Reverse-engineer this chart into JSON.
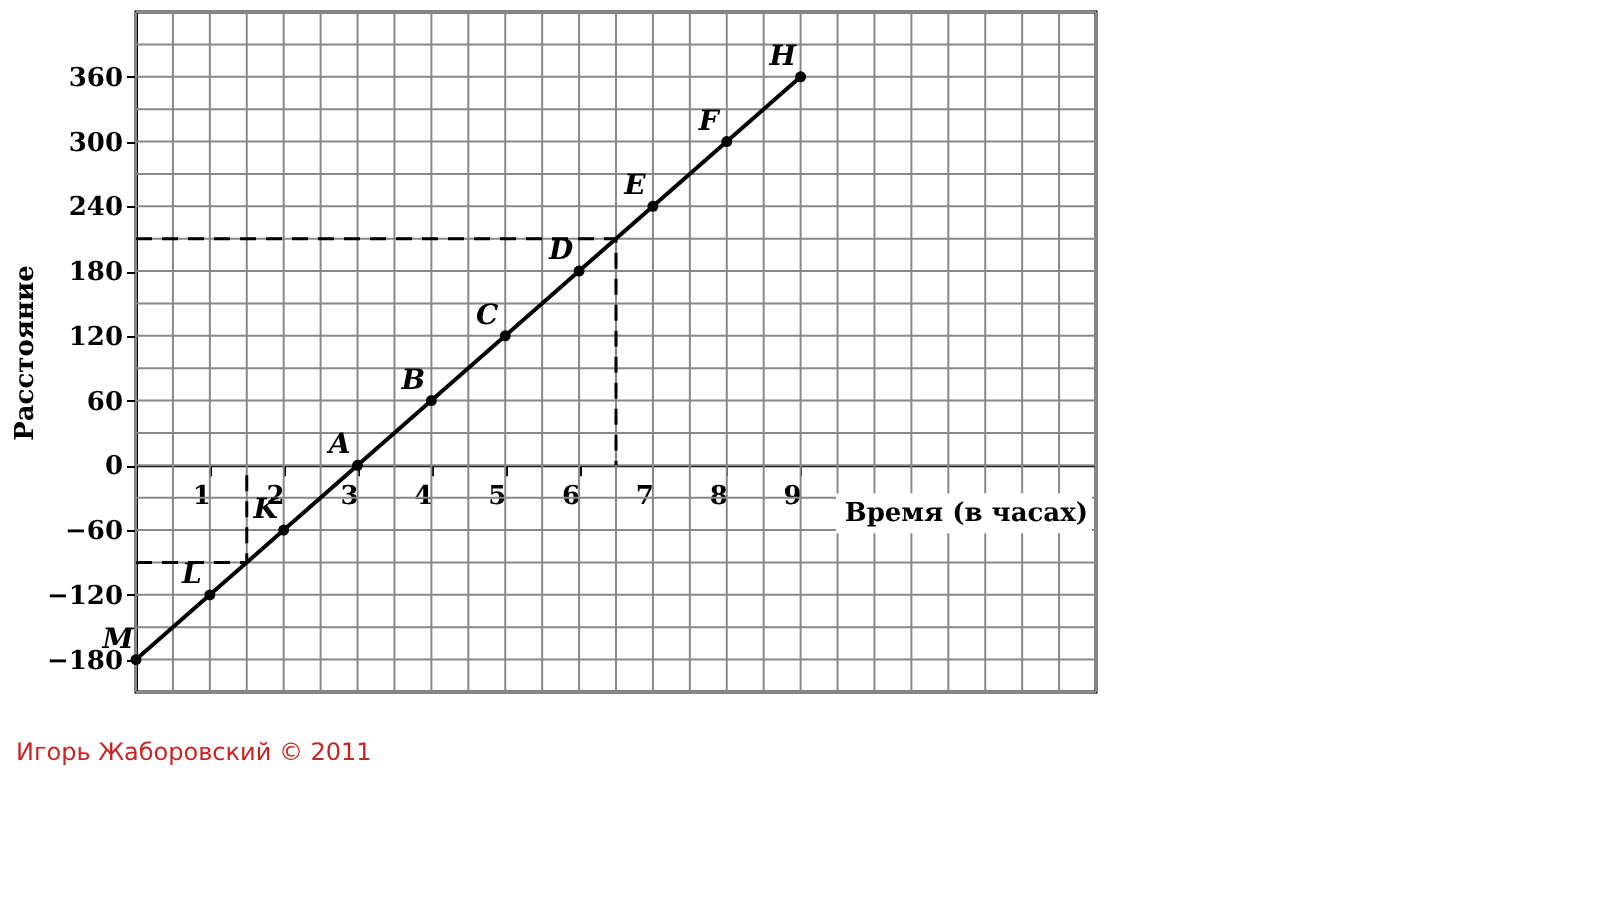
{
  "chart_data": {
    "type": "line",
    "xlabel": "Время (в часах)",
    "ylabel": "Расстояние",
    "xlim": [
      0,
      13
    ],
    "ylim": [
      -210,
      420
    ],
    "xticks": [
      1,
      2,
      3,
      4,
      5,
      6,
      7,
      8,
      9
    ],
    "yticks": [
      -180,
      -120,
      -60,
      0,
      60,
      120,
      180,
      240,
      300,
      360
    ],
    "grid": true,
    "marker": "circle",
    "series": [
      {
        "color": "#000000",
        "x": [
          0,
          1,
          2,
          3,
          4,
          5,
          6,
          7,
          8,
          9
        ],
        "values": [
          -180,
          -120,
          -60,
          0,
          60,
          120,
          180,
          240,
          300,
          360
        ]
      },
      {
        "color": "#000000",
        "type": "line",
        "line_style": "dashed",
        "marker": "none",
        "x": [
          0,
          6.5,
          6.5
        ],
        "values": [
          210,
          210,
          0
        ]
      },
      {
        "color": "#000000",
        "type": "line",
        "line_style": "dashed",
        "marker": "none",
        "x": [
          0,
          1.5,
          1.5
        ],
        "values": [
          -90,
          -90,
          0
        ]
      }
    ],
    "annotations": [
      {
        "text": "M",
        "x": 0,
        "y": -180
      },
      {
        "text": "L",
        "x": 1,
        "y": -120
      },
      {
        "text": "K",
        "x": 2,
        "y": -60
      },
      {
        "text": "A",
        "x": 3,
        "y": 0
      },
      {
        "text": "B",
        "x": 4,
        "y": 60
      },
      {
        "text": "C",
        "x": 5,
        "y": 120
      },
      {
        "text": "D",
        "x": 6,
        "y": 180
      },
      {
        "text": "E",
        "x": 7,
        "y": 240
      },
      {
        "text": "F",
        "x": 8,
        "y": 300
      },
      {
        "text": "H",
        "x": 9,
        "y": 360
      },
      "Игорь Жаборовский © 2011"
    ]
  }
}
